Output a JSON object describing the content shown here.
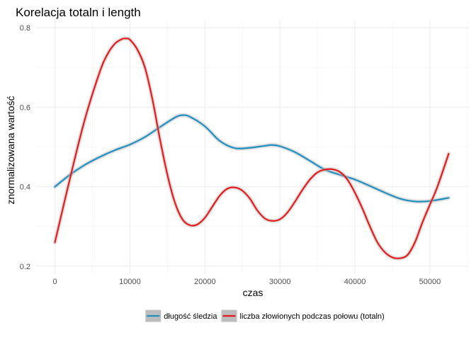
{
  "chart_data": {
    "type": "line",
    "title": "Korelacja totaln i length",
    "xlabel": "czas",
    "ylabel": "znormalizowana wartość",
    "xlim": [
      -2600,
      55200
    ],
    "ylim": [
      0.18,
      0.82
    ],
    "x_ticks": [
      0,
      10000,
      20000,
      30000,
      40000,
      50000
    ],
    "x_tick_labels": [
      "0",
      "10000",
      "20000",
      "30000",
      "40000",
      "50000"
    ],
    "y_ticks": [
      0.2,
      0.4,
      0.6,
      0.8
    ],
    "y_tick_labels": [
      "0.2",
      "0.4",
      "0.6",
      "0.8"
    ],
    "grid": true,
    "legend_position": "bottom",
    "series": [
      {
        "name": "długość śledzia",
        "color": "#1f8fbf",
        "x": [
          0,
          2000,
          4000,
          6000,
          8000,
          10000,
          12000,
          14000,
          16000,
          17000,
          18000,
          20000,
          22000,
          24000,
          26000,
          28000,
          29000,
          30000,
          32000,
          34000,
          36000,
          38000,
          40000,
          42000,
          44000,
          46000,
          48000,
          50000,
          52500
        ],
        "y": [
          0.4,
          0.43,
          0.455,
          0.475,
          0.492,
          0.506,
          0.525,
          0.55,
          0.574,
          0.58,
          0.576,
          0.552,
          0.515,
          0.497,
          0.498,
          0.503,
          0.505,
          0.502,
          0.487,
          0.465,
          0.443,
          0.43,
          0.418,
          0.402,
          0.385,
          0.37,
          0.363,
          0.364,
          0.372
        ]
      },
      {
        "name": "liczba złowionych podczas połowu (totaln)",
        "color": "#e41a1c",
        "x": [
          0,
          2000,
          4000,
          6000,
          7000,
          8000,
          9000,
          9500,
          10000,
          11000,
          12000,
          13000,
          14000,
          15000,
          16000,
          17000,
          18000,
          19000,
          20000,
          21000,
          22000,
          23000,
          24000,
          25000,
          26000,
          27000,
          28000,
          29000,
          30000,
          31000,
          32000,
          33000,
          34000,
          35000,
          36000,
          37000,
          38000,
          39000,
          40000,
          41000,
          42000,
          43000,
          44000,
          45000,
          46000,
          47000,
          48000,
          49000,
          50000,
          51000,
          52500
        ],
        "y": [
          0.26,
          0.42,
          0.57,
          0.69,
          0.733,
          0.76,
          0.772,
          0.773,
          0.77,
          0.745,
          0.7,
          0.62,
          0.52,
          0.43,
          0.36,
          0.318,
          0.303,
          0.305,
          0.322,
          0.35,
          0.378,
          0.395,
          0.398,
          0.39,
          0.37,
          0.34,
          0.32,
          0.314,
          0.318,
          0.335,
          0.362,
          0.392,
          0.418,
          0.436,
          0.443,
          0.444,
          0.437,
          0.418,
          0.385,
          0.345,
          0.3,
          0.26,
          0.235,
          0.222,
          0.22,
          0.228,
          0.26,
          0.31,
          0.355,
          0.4,
          0.483
        ]
      }
    ]
  }
}
